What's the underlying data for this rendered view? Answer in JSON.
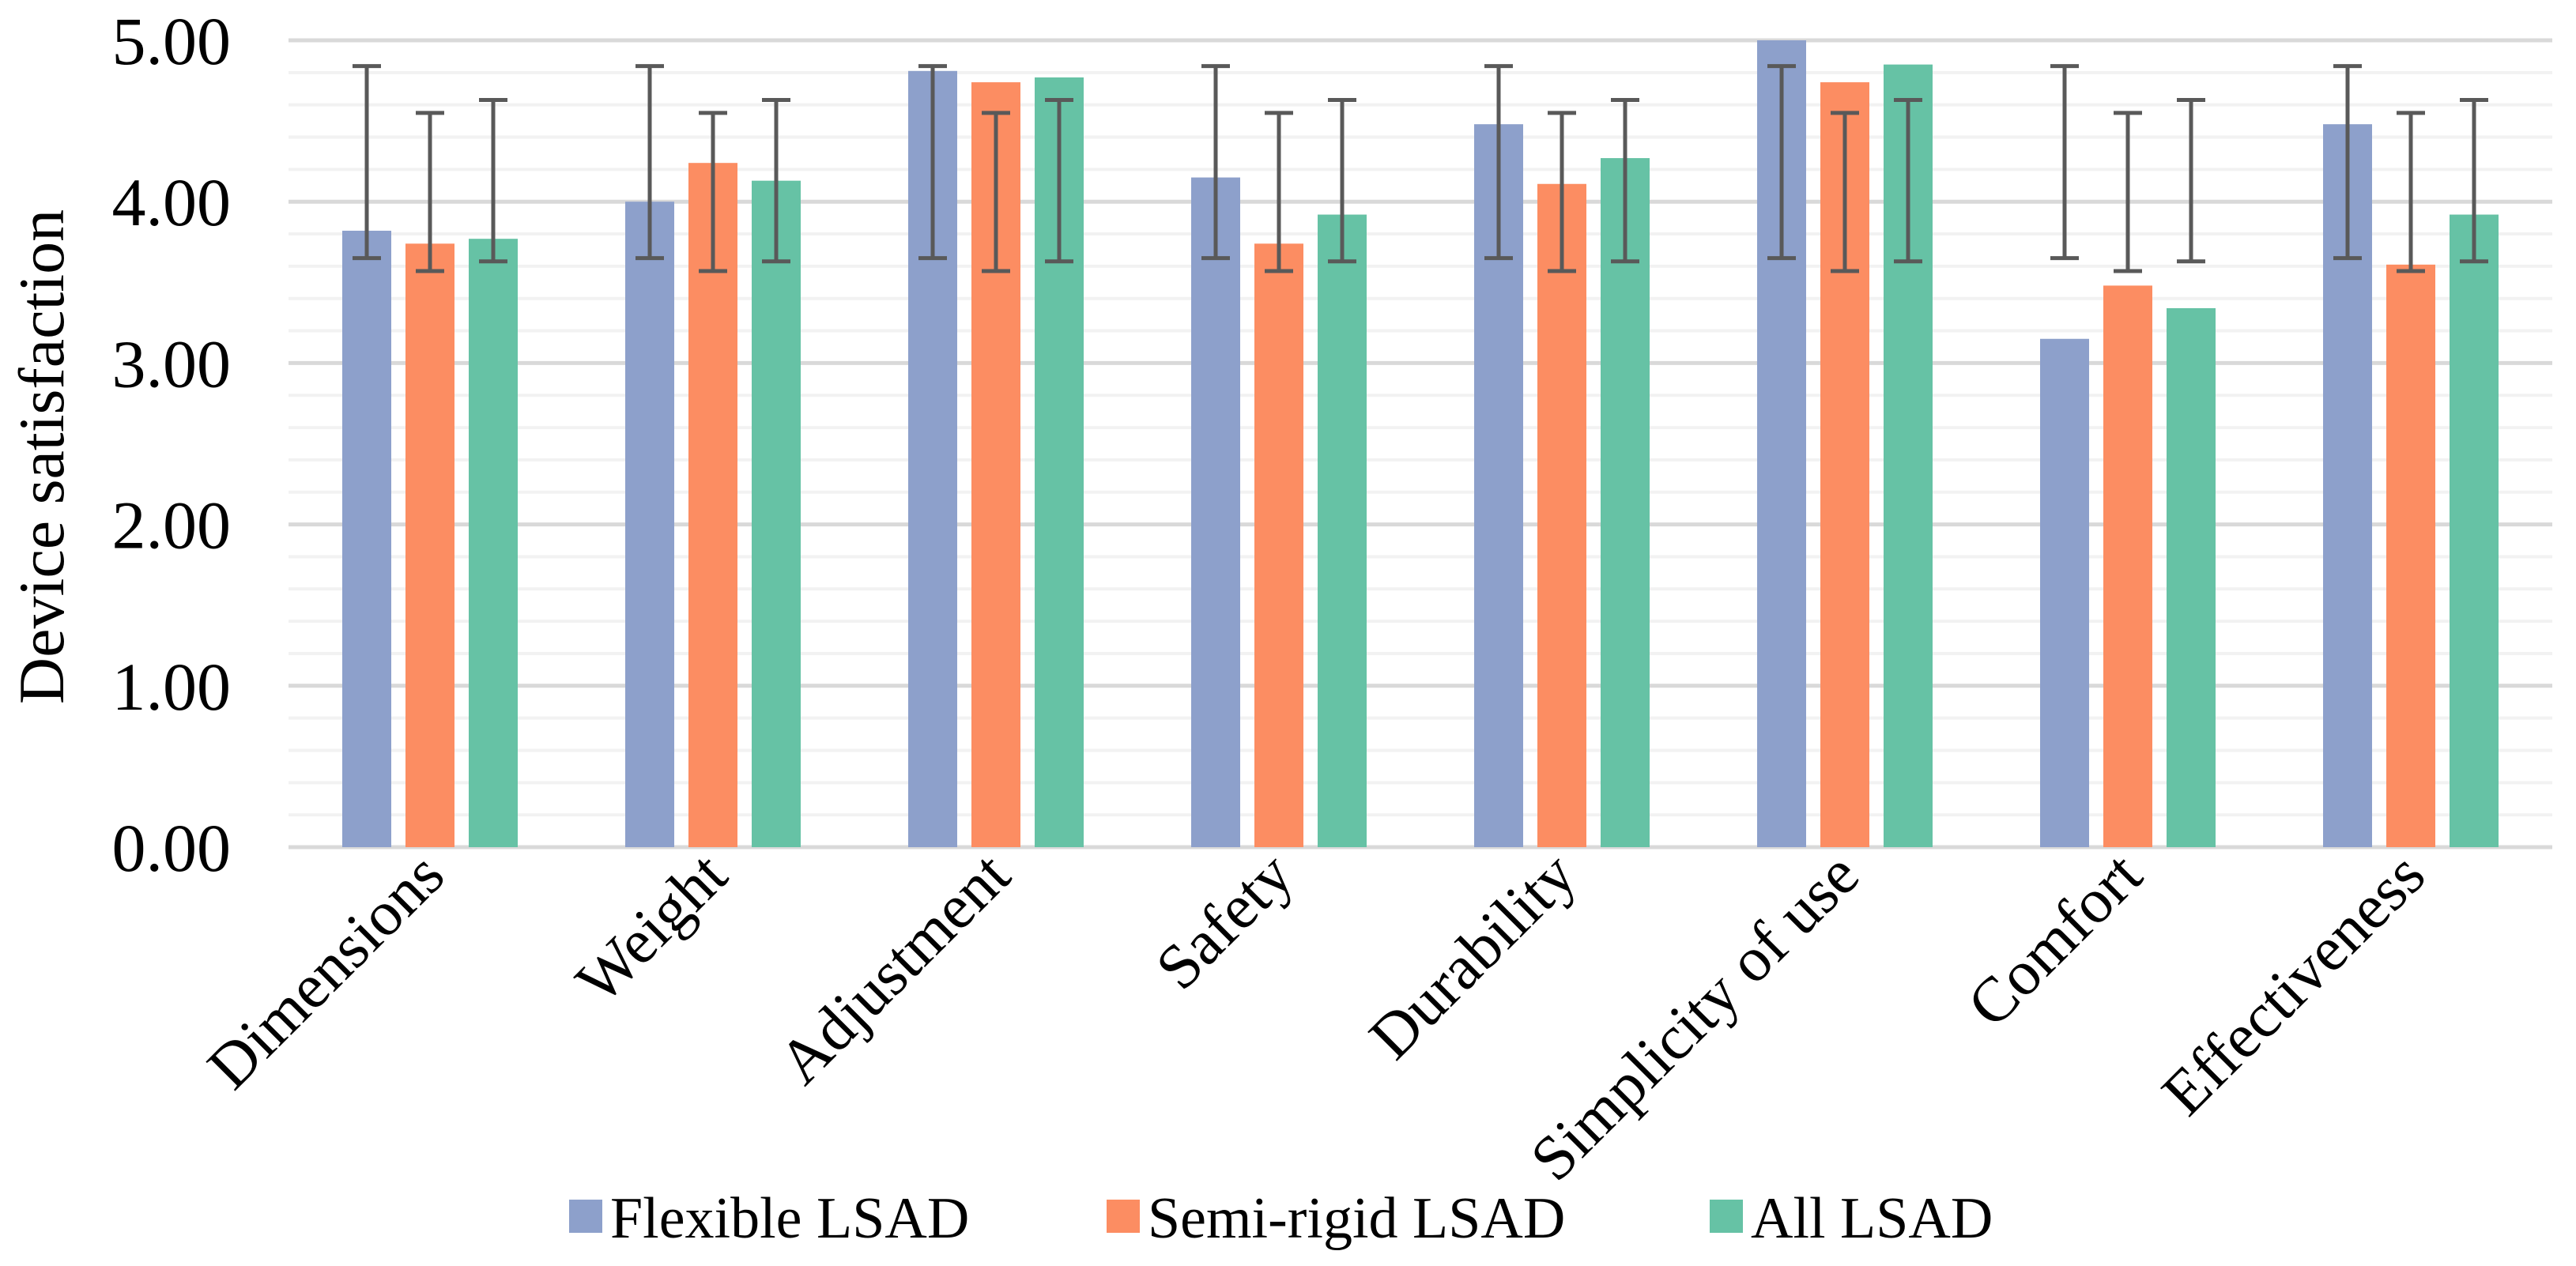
{
  "chart_data": {
    "type": "bar",
    "title": "",
    "xlabel": "",
    "ylabel": "Device satisfaction",
    "ylim": [
      0,
      5
    ],
    "yticks": [
      "0.00",
      "1.00",
      "2.00",
      "3.00",
      "4.00",
      "5.00"
    ],
    "minor_grid_step": 0.2,
    "grid": true,
    "legend_position": "bottom",
    "categories": [
      "Dimensions",
      "Weight",
      "Adjustment",
      "Safety",
      "Durability",
      "Simplicity of use",
      "Comfort",
      "Effectiveness"
    ],
    "series": [
      {
        "name": "Flexible LSAD",
        "color": "#8DA0CB",
        "values": [
          3.82,
          4.0,
          4.81,
          4.15,
          4.48,
          5.0,
          3.15,
          4.48
        ],
        "error_range": [
          3.65,
          4.84
        ]
      },
      {
        "name": "Semi-rigid LSAD",
        "color": "#FC8D62",
        "values": [
          3.74,
          4.24,
          4.74,
          3.74,
          4.11,
          4.74,
          3.48,
          3.61
        ],
        "error_range": [
          3.57,
          4.55
        ]
      },
      {
        "name": "All LSAD",
        "color": "#66C2A5",
        "values": [
          3.77,
          4.13,
          4.77,
          3.92,
          4.27,
          4.85,
          3.34,
          3.92
        ],
        "error_range": [
          3.63,
          4.63
        ]
      }
    ],
    "error_bar_color": "#595959"
  }
}
